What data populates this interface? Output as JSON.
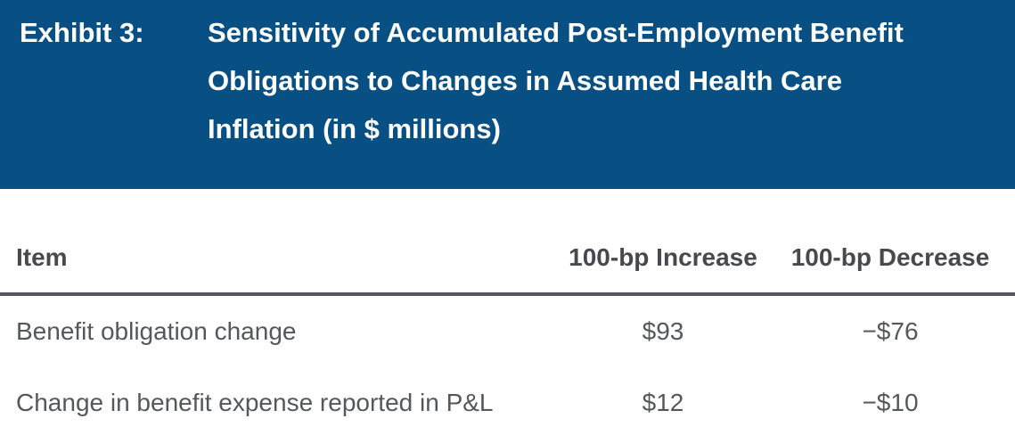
{
  "exhibit": {
    "label": "Exhibit 3:",
    "title_lines": [
      "Sensitivity of Accumulated Post-Employment Benefit",
      "Obligations to Changes in Assumed Health Care",
      "Inflation (in $ millions)"
    ]
  },
  "table": {
    "columns": {
      "item": "Item",
      "increase": "100-bp Increase",
      "decrease": "100-bp Decrease"
    },
    "rows": [
      {
        "item": "Benefit obligation change",
        "increase": "$93",
        "decrease": "−$76"
      },
      {
        "item": "Change in benefit expense reported in P&L",
        "increase": "$12",
        "decrease": "−$10"
      }
    ]
  },
  "colors": {
    "band_background": "#085083",
    "band_text": "#ffffff",
    "header_text": "#46494e",
    "body_text": "#54575c",
    "rule": "#53565a"
  }
}
